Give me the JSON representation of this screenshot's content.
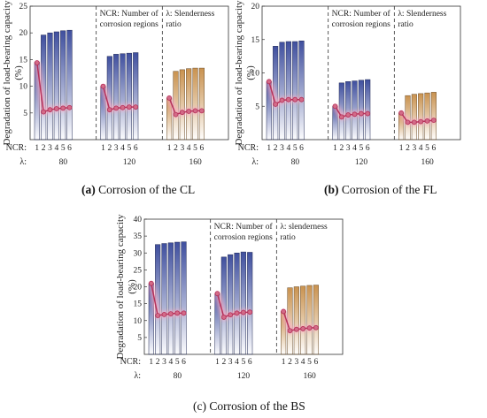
{
  "figure": {
    "captions": [
      {
        "label": "(a)",
        "text": " Corrosion of the CL",
        "bold_label": true
      },
      {
        "label": "(b)",
        "text": " Corrosion of the FL",
        "bold_label": true
      },
      {
        "label": "(c)",
        "text": " Corrosion of the BS",
        "bold_label": false
      }
    ]
  },
  "colors": {
    "bar_blue": "#3f4f9e",
    "bar_orange": "#c9924f",
    "line": "#b5315a",
    "marker_fill": "#d36b88",
    "glow": "#f7a8c0",
    "divider": "#333333"
  },
  "chart_data": [
    {
      "type": "bar",
      "panel": "a",
      "title": "Corrosion of the CL",
      "ylabel": "Degradation of load-bearing capacity (%)",
      "ylim": [
        0,
        25
      ],
      "yticks": [
        5,
        10,
        15,
        20,
        25
      ],
      "row_labels": [
        "NCR:",
        "λ:"
      ],
      "groups": [
        {
          "lambda": "80",
          "color": "bar_blue",
          "ncr": [
            "1",
            "2",
            "3",
            "4",
            "5",
            "6"
          ],
          "bars": [
            14.5,
            19.6,
            20.0,
            20.2,
            20.4,
            20.5
          ],
          "line": [
            14.4,
            5.2,
            5.6,
            5.8,
            5.9,
            6.0
          ]
        },
        {
          "lambda": "120",
          "color": "bar_blue",
          "ncr": [
            "1",
            "2",
            "3",
            "4",
            "5",
            "6"
          ],
          "bars": [
            10.0,
            15.6,
            16.0,
            16.1,
            16.2,
            16.3
          ],
          "line": [
            10.0,
            5.6,
            5.9,
            6.0,
            6.1,
            6.1
          ]
        },
        {
          "lambda": "160",
          "color": "bar_orange",
          "ncr": [
            "1",
            "2",
            "3",
            "4",
            "5",
            "6"
          ],
          "bars": [
            7.8,
            12.8,
            13.1,
            13.3,
            13.4,
            13.4
          ],
          "line": [
            7.8,
            4.7,
            5.1,
            5.3,
            5.4,
            5.4
          ]
        }
      ],
      "annotations": [
        {
          "group": 1,
          "lines": [
            "NCR: Number of",
            "corrosion regions"
          ]
        },
        {
          "group": 2,
          "lines": [
            "λ: Slenderness",
            "ratio"
          ]
        }
      ]
    },
    {
      "type": "bar",
      "panel": "b",
      "title": "Corrosion of the FL",
      "ylabel": "Degradation of load-bearing capacity (%)",
      "ylim": [
        0,
        20
      ],
      "yticks": [
        5,
        10,
        15,
        20
      ],
      "row_labels": [
        "NCR:",
        "λ:"
      ],
      "groups": [
        {
          "lambda": "80",
          "color": "bar_blue",
          "ncr": [
            "1",
            "2",
            "3",
            "4",
            "5",
            "6"
          ],
          "bars": [
            8.7,
            14.0,
            14.6,
            14.7,
            14.7,
            14.8
          ],
          "line": [
            8.7,
            5.3,
            5.9,
            6.0,
            6.0,
            6.0
          ]
        },
        {
          "lambda": "120",
          "color": "bar_blue",
          "ncr": [
            "1",
            "2",
            "3",
            "4",
            "5",
            "6"
          ],
          "bars": [
            5.0,
            8.5,
            8.7,
            8.8,
            8.9,
            9.0
          ],
          "line": [
            5.0,
            3.4,
            3.7,
            3.8,
            3.9,
            3.9
          ]
        },
        {
          "lambda": "160",
          "color": "bar_orange",
          "ncr": [
            "1",
            "2",
            "3",
            "4",
            "5",
            "6"
          ],
          "bars": [
            4.0,
            6.6,
            6.8,
            6.9,
            7.0,
            7.1
          ],
          "line": [
            4.0,
            2.6,
            2.6,
            2.7,
            2.8,
            2.9
          ]
        }
      ],
      "annotations": [
        {
          "group": 1,
          "lines": [
            "NCR: Number of",
            "corrosion regions"
          ]
        },
        {
          "group": 2,
          "lines": [
            "λ: Slenderness",
            "ratio"
          ]
        }
      ]
    },
    {
      "type": "bar",
      "panel": "c",
      "title": "Corrosion of the BS",
      "ylabel": "Degradation of load-bearing capacity (%)",
      "ylim": [
        0,
        40
      ],
      "yticks": [
        5,
        10,
        15,
        20,
        25,
        30,
        35,
        40
      ],
      "row_labels": [
        "NCR:",
        "λ:"
      ],
      "groups": [
        {
          "lambda": "80",
          "color": "bar_blue",
          "ncr": [
            "1",
            "2",
            "3",
            "4",
            "5",
            "6"
          ],
          "bars": [
            21.0,
            32.5,
            32.8,
            33.0,
            33.2,
            33.3
          ],
          "line": [
            21.0,
            11.5,
            11.8,
            12.0,
            12.2,
            12.2
          ]
        },
        {
          "lambda": "120",
          "color": "bar_blue",
          "ncr": [
            "1",
            "2",
            "3",
            "4",
            "5",
            "6"
          ],
          "bars": [
            18.0,
            28.8,
            29.5,
            30.0,
            30.3,
            30.2
          ],
          "line": [
            18.0,
            11.0,
            11.7,
            12.2,
            12.4,
            12.5
          ]
        },
        {
          "lambda": "160",
          "color": "bar_orange",
          "ncr": [
            "1",
            "2",
            "3",
            "4",
            "5",
            "6"
          ],
          "bars": [
            12.7,
            19.7,
            20.0,
            20.2,
            20.4,
            20.5
          ],
          "line": [
            12.7,
            7.0,
            7.4,
            7.6,
            7.8,
            7.9
          ]
        }
      ],
      "annotations": [
        {
          "group": 1,
          "lines": [
            "NCR: Number of",
            "corrosion regions"
          ]
        },
        {
          "group": 2,
          "lines": [
            "λ: slenderness",
            "ratio"
          ]
        }
      ]
    }
  ]
}
